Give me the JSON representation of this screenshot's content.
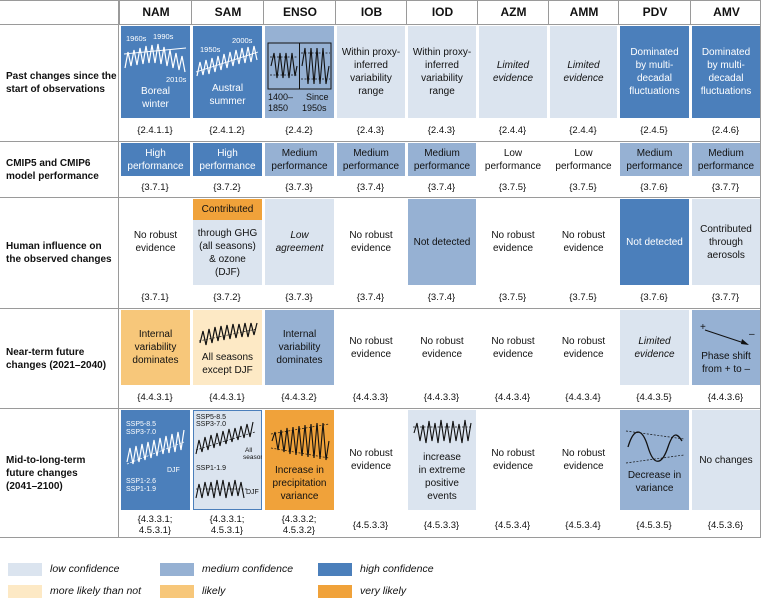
{
  "columns": [
    "NAM",
    "SAM",
    "ENSO",
    "IOB",
    "IOD",
    "AZM",
    "AMM",
    "PDV",
    "AMV"
  ],
  "rows": [
    {
      "label": [
        "Past changes since the",
        "start of observations"
      ]
    },
    {
      "label": [
        "CMIP5 and CMIP6",
        "model performance"
      ]
    },
    {
      "label": [
        "Human influence on",
        "the observed changes"
      ]
    },
    {
      "label": [
        "Near-term future",
        "changes (2021–2040)"
      ]
    },
    {
      "label": [
        "Mid-to-long-term",
        "future changes",
        "(2041–2100)"
      ]
    }
  ],
  "past": {
    "nam": {
      "years": [
        "1960s",
        "1990s",
        "2010s"
      ],
      "text": [
        "Boreal",
        "winter"
      ],
      "ref": "{2.4.1.1}"
    },
    "sam": {
      "years": [
        "1950s",
        "2000s"
      ],
      "text": [
        "Austral",
        "summer"
      ],
      "ref": "{2.4.1.2}"
    },
    "enso": {
      "periods": [
        [
          "1400–",
          "1850"
        ],
        [
          "Since",
          "1950s"
        ]
      ],
      "ref": "{2.4.2}"
    },
    "iob": {
      "text": [
        "Within proxy-",
        "inferred",
        "variability",
        "range"
      ],
      "ref": "{2.4.3}"
    },
    "iod": {
      "text": [
        "Within proxy-",
        "inferred",
        "variability",
        "range"
      ],
      "ref": "{2.4.3}"
    },
    "azm": {
      "text": [
        "Limited",
        "evidence"
      ],
      "ref": "{2.4.4}"
    },
    "amm": {
      "text": [
        "Limited",
        "evidence"
      ],
      "ref": "{2.4.4}"
    },
    "pdv": {
      "text": [
        "Dominated",
        "by multi-",
        "decadal",
        "fluctuations"
      ],
      "ref": "{2.4.5}"
    },
    "amv": {
      "text": [
        "Dominated",
        "by multi-",
        "decadal",
        "fluctuations"
      ],
      "ref": "{2.4.6}"
    }
  },
  "perf": {
    "nam": {
      "text": [
        "High",
        "performance"
      ],
      "ref": "{3.7.1}"
    },
    "sam": {
      "text": [
        "High",
        "performance"
      ],
      "ref": "{3.7.2}"
    },
    "enso": {
      "text": [
        "Medium",
        "performance"
      ],
      "ref": "{3.7.3}"
    },
    "iob": {
      "text": [
        "Medium",
        "performance"
      ],
      "ref": "{3.7.4}"
    },
    "iod": {
      "text": [
        "Medium",
        "performance"
      ],
      "ref": "{3.7.4}"
    },
    "azm": {
      "text": [
        "Low",
        "performance"
      ],
      "ref": "{3.7.5}"
    },
    "amm": {
      "text": [
        "Low",
        "performance"
      ],
      "ref": "{3.7.5}"
    },
    "pdv": {
      "text": [
        "Medium",
        "performance"
      ],
      "ref": "{3.7.6}"
    },
    "amv": {
      "text": [
        "Medium",
        "performance"
      ],
      "ref": "{3.7.7}"
    }
  },
  "human": {
    "nam": {
      "text": [
        "No robust",
        "evidence"
      ],
      "ref": "{3.7.1}"
    },
    "sam": {
      "top": "Contributed",
      "text": [
        "through GHG",
        "(all seasons)",
        "& ozone",
        "(DJF)"
      ],
      "ref": "{3.7.2}"
    },
    "enso": {
      "text": [
        "Low",
        "agreement"
      ],
      "ref": "{3.7.3}"
    },
    "iob": {
      "text": [
        "No robust",
        "evidence"
      ],
      "ref": "{3.7.4}"
    },
    "iod": {
      "text": [
        "Not detected"
      ],
      "ref": "{3.7.4}"
    },
    "azm": {
      "text": [
        "No robust",
        "evidence"
      ],
      "ref": "{3.7.5}"
    },
    "amm": {
      "text": [
        "No robust",
        "evidence"
      ],
      "ref": "{3.7.5}"
    },
    "pdv": {
      "text": [
        "Not detected"
      ],
      "ref": "{3.7.6}"
    },
    "amv": {
      "text": [
        "Contributed",
        "through",
        "aerosols"
      ],
      "ref": "{3.7.7}"
    }
  },
  "near": {
    "nam": {
      "text": [
        "Internal",
        "variability",
        "dominates"
      ],
      "ref": "{4.4.3.1}"
    },
    "sam": {
      "text": [
        "All seasons",
        "except DJF"
      ],
      "ref": "{4.4.3.1}"
    },
    "enso": {
      "text": [
        "Internal",
        "variability",
        "dominates"
      ],
      "ref": "{4.4.3.2}"
    },
    "iob": {
      "text": [
        "No robust",
        "evidence"
      ],
      "ref": "{4.4.3.3}"
    },
    "iod": {
      "text": [
        "No robust",
        "evidence"
      ],
      "ref": "{4.4.3.3}"
    },
    "azm": {
      "text": [
        "No robust",
        "evidence"
      ],
      "ref": "{4.4.3.4}"
    },
    "amm": {
      "text": [
        "No robust",
        "evidence"
      ],
      "ref": "{4.4.3.4}"
    },
    "pdv": {
      "text": [
        "Limited",
        "evidence"
      ],
      "ref": "{4.4.3.5}"
    },
    "amv": {
      "signs": [
        "+",
        "–"
      ],
      "text": [
        "Phase shift",
        "from + to –"
      ],
      "ref": "{4.4.3.6}"
    }
  },
  "long": {
    "nam": {
      "upper": [
        "SSP5-8.5",
        "SSP3-7.0"
      ],
      "lower": [
        "SSP1-2.6",
        "SSP1-1.9"
      ],
      "season": "DJF",
      "ref": [
        "{4.3.3.1;",
        "4.5.3.1}"
      ]
    },
    "sam": {
      "upper": [
        "SSP5-8.5",
        "SSP3-7.0"
      ],
      "side": [
        "All",
        "seasons"
      ],
      "lower": [
        "SSP1-1.9"
      ],
      "season": "DJF",
      "ref": [
        "{4.3.3.1;",
        "4.5.3.1}"
      ]
    },
    "enso": {
      "text": [
        "Increase in",
        "precipitation",
        "variance"
      ],
      "ref": [
        "{4.3.3.2;",
        "4.5.3.2}"
      ]
    },
    "iob": {
      "text": [
        "No robust",
        "evidence"
      ],
      "ref": [
        "{4.5.3.3}"
      ]
    },
    "iod": {
      "text": [
        "increase",
        "in extreme",
        "positive",
        "events"
      ],
      "ref": [
        "{4.5.3.3}"
      ]
    },
    "azm": {
      "text": [
        "No robust",
        "evidence"
      ],
      "ref": [
        "{4.5.3.4}"
      ]
    },
    "amm": {
      "text": [
        "No robust",
        "evidence"
      ],
      "ref": [
        "{4.5.3.4}"
      ]
    },
    "pdv": {
      "text": [
        "Decrease in",
        "variance"
      ],
      "ref": [
        "{4.5.3.5}"
      ]
    },
    "amv": {
      "text": [
        "No changes"
      ],
      "ref": [
        "{4.5.3.6}"
      ]
    }
  },
  "legend": [
    {
      "label": "low confidence",
      "color": "#dbe4ef"
    },
    {
      "label": "medium confidence",
      "color": "#96b1d3"
    },
    {
      "label": "high confidence",
      "color": "#4b7fbb"
    },
    {
      "label": "more likely than not",
      "color": "#fde9c5"
    },
    {
      "label": "likely",
      "color": "#f7c77a"
    },
    {
      "label": "very likely",
      "color": "#f0a23a"
    }
  ]
}
